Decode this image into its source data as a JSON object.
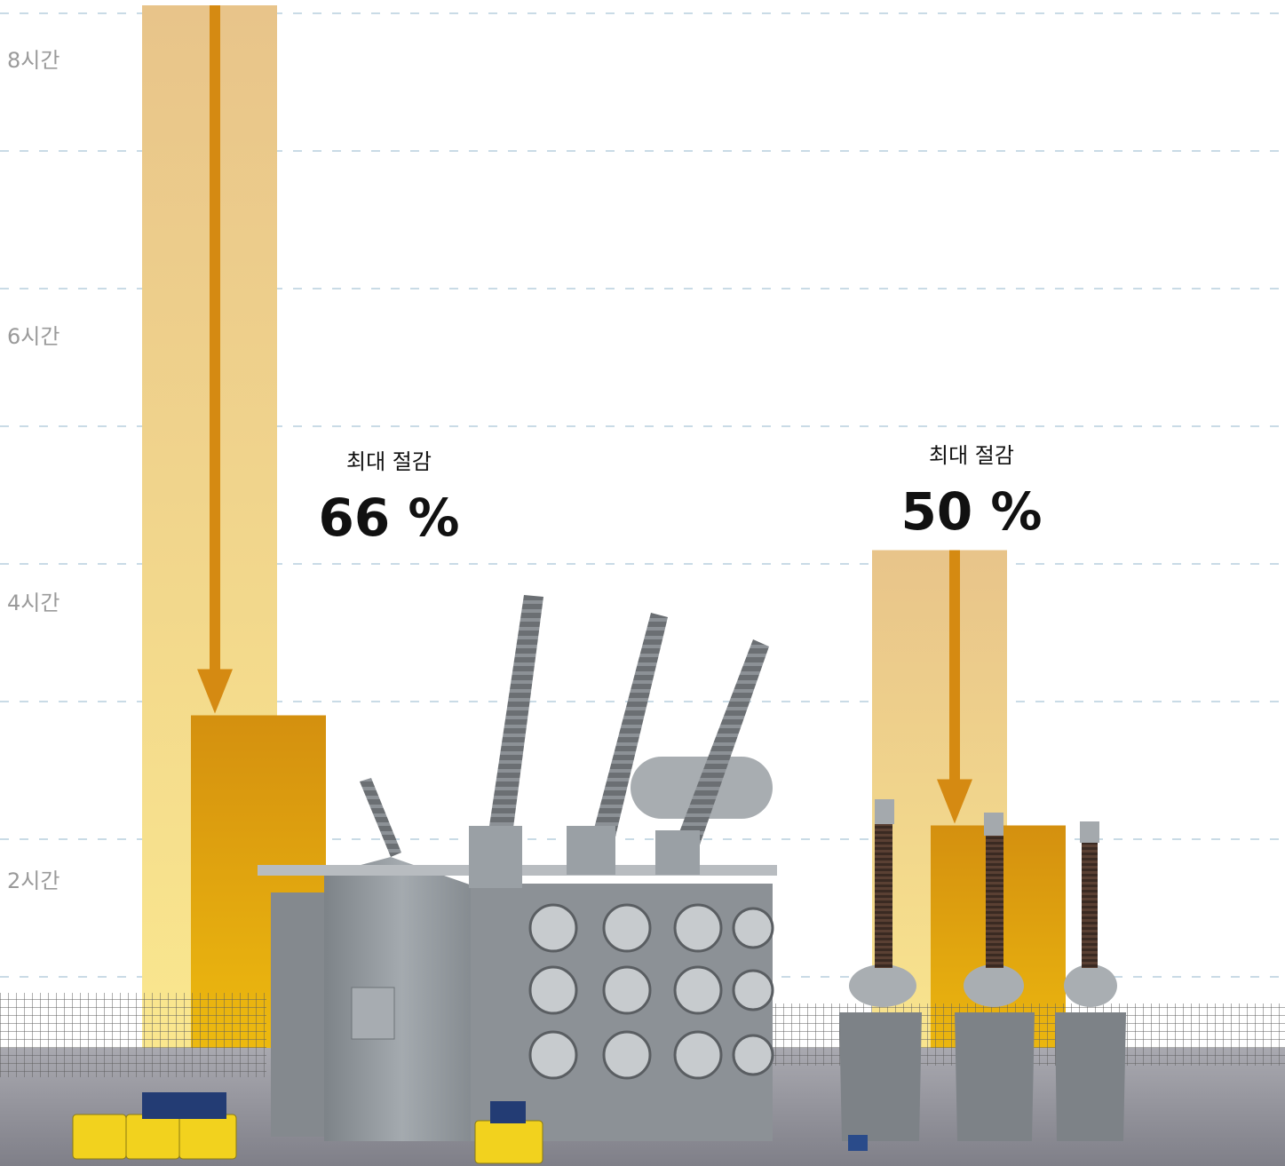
{
  "chart_data": {
    "type": "bar",
    "y_ticks": [
      {
        "value": 8,
        "label": "8시간"
      },
      {
        "value": 6,
        "label": "6시간"
      },
      {
        "value": 4,
        "label": "4시간"
      },
      {
        "value": 2,
        "label": "2시간"
      }
    ],
    "ylim": [
      0,
      8.4
    ],
    "grid": true,
    "groups": [
      {
        "name": "transformer",
        "before": 8.4,
        "after": 2.9
      },
      {
        "name": "instrument-transformer",
        "before": 4.1,
        "after": 2.1
      }
    ],
    "annotations": [
      {
        "label": "최대 절감",
        "value": "66 %"
      },
      {
        "label": "최대 절감",
        "value": "50 %"
      }
    ]
  },
  "colors": {
    "before_top": "#e8c48a",
    "before_bottom": "#fbe98e",
    "after_top": "#d4900f",
    "after_bottom": "#f2c20f",
    "arrow": "#d58a12",
    "grid": "#c9dbe6",
    "tick_text": "#9a9a9a",
    "ground": "#9a9aa2",
    "fence": "#6a6a6a",
    "equipment": "#8f959b",
    "test_unit": "#f2d21e"
  }
}
